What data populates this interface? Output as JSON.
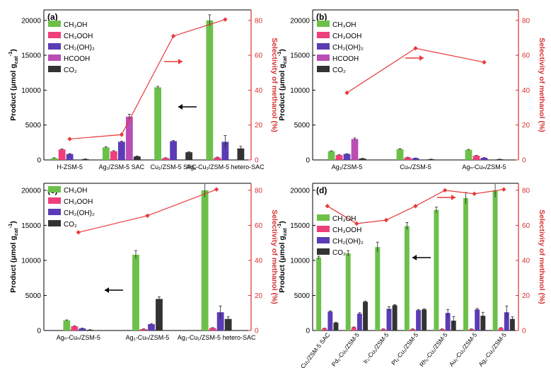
{
  "colors": {
    "CH3OH": "#6cc04a",
    "CH3OOH": "#ef3f7a",
    "CH2OH2": "#5b3cb5",
    "HCOOH": "#b94fb5",
    "CO2": "#333333",
    "selectivity": "#e83a3a",
    "axis": "#000000",
    "right_axis": "#d83030"
  },
  "chart_data": [
    {
      "panel": "(a)",
      "type": "bar",
      "ylabel": "Product (μmol g_cat^-1)",
      "y2label": "Selectivity of methanol (%)",
      "ylim": [
        0,
        21500
      ],
      "y2lim": [
        0,
        86
      ],
      "yticks": [
        0,
        5000,
        10000,
        15000,
        20000
      ],
      "y2ticks": [
        0,
        20,
        40,
        60,
        80
      ],
      "categories": [
        "H-ZSM-5",
        "Ag₁/ZSM-5 SAC",
        "Cu₁/ZSM-5 SAC",
        "Ag₁-Cu₁/ZSM-5 hetero-SAC"
      ],
      "series": [
        {
          "name": "CH3OH",
          "values": [
            250,
            1800,
            10400,
            20000
          ],
          "errors": [
            60,
            100,
            150,
            800
          ]
        },
        {
          "name": "CH3OOH",
          "values": [
            1500,
            1250,
            280,
            350
          ],
          "errors": [
            80,
            80,
            40,
            60
          ]
        },
        {
          "name": "CH2(OH)2",
          "values": [
            850,
            2600,
            2700,
            2600
          ],
          "errors": [
            60,
            100,
            100,
            900
          ]
        },
        {
          "name": "HCOOH",
          "values": [
            0,
            6200,
            0,
            0
          ],
          "errors": [
            0,
            350,
            0,
            0
          ]
        },
        {
          "name": "CO2",
          "values": [
            120,
            500,
            1100,
            1650
          ],
          "errors": [
            30,
            60,
            80,
            300
          ]
        }
      ],
      "selectivity": [
        12,
        14.5,
        71,
        80.5
      ],
      "legend": [
        "CH₃OH",
        "CH₃OOH",
        "CH₂(OH)₂",
        "HCOOH",
        "CO₂"
      ],
      "arrows": [
        "left",
        "right"
      ]
    },
    {
      "panel": "(b)",
      "type": "bar",
      "ylabel": "Product (μmol g_cat^-1)",
      "y2label": "Selectivity of methanol (%)",
      "ylim": [
        0,
        21500
      ],
      "y2lim": [
        0,
        86
      ],
      "yticks": [
        0,
        5000,
        10000,
        15000,
        20000
      ],
      "y2ticks": [
        0,
        20,
        40,
        60,
        80
      ],
      "categories": [
        "Ag₁/ZSM-5",
        "Cuₙ/ZSM-5",
        "Agₙ-Cuₙ/ZSM-5"
      ],
      "series": [
        {
          "name": "CH3OH",
          "values": [
            1250,
            1550,
            1450
          ],
          "errors": [
            60,
            70,
            60
          ]
        },
        {
          "name": "CH3OOH",
          "values": [
            700,
            350,
            600
          ],
          "errors": [
            50,
            40,
            50
          ]
        },
        {
          "name": "CH2(OH)2",
          "values": [
            850,
            250,
            300
          ],
          "errors": [
            50,
            30,
            40
          ]
        },
        {
          "name": "HCOOH",
          "values": [
            3000,
            0,
            0
          ],
          "errors": [
            150,
            0,
            0
          ]
        },
        {
          "name": "CO2",
          "values": [
            200,
            100,
            100
          ],
          "errors": [
            30,
            20,
            20
          ]
        }
      ],
      "selectivity": [
        38.5,
        64,
        56
      ],
      "legend": [
        "CH₃OH",
        "CH₃OOH",
        "CH₂(OH)₂",
        "HCOOH",
        "CO₂"
      ],
      "arrows": [
        "right"
      ]
    },
    {
      "panel": "(c)",
      "type": "bar",
      "ylabel": "Product (μmol g_cat^-1)",
      "y2label": "Selectivity of methanol (%)",
      "ylim": [
        0,
        21000
      ],
      "y2lim": [
        0,
        84
      ],
      "yticks": [
        0,
        5000,
        10000,
        15000,
        20000
      ],
      "y2ticks": [
        0,
        20,
        40,
        60,
        80
      ],
      "categories": [
        "Agₙ-Cuₙ/ZSM-5",
        "Ag₁-Cuₙ/ZSM-5",
        "Ag₁-Cu₁/ZSM-5 hetero-SAC"
      ],
      "series": [
        {
          "name": "CH3OH",
          "values": [
            1450,
            10800,
            20000
          ],
          "errors": [
            60,
            600,
            1000
          ]
        },
        {
          "name": "CH3OOH",
          "values": [
            600,
            200,
            350
          ],
          "errors": [
            50,
            30,
            60
          ]
        },
        {
          "name": "CH2(OH)2",
          "values": [
            300,
            900,
            2600
          ],
          "errors": [
            40,
            80,
            900
          ]
        },
        {
          "name": "CO2",
          "values": [
            100,
            4500,
            1650
          ],
          "errors": [
            20,
            300,
            300
          ]
        }
      ],
      "selectivity": [
        56,
        65.5,
        80.5
      ],
      "legend": [
        "CH₃OH",
        "CH₃OOH",
        "CH₂(OH)₂",
        "CO₂"
      ],
      "arrows": [
        "left"
      ]
    },
    {
      "panel": "(d)",
      "type": "bar",
      "ylabel": "Product (μmol g_cat^-1)",
      "y2label": "Selectivity of methanol (%)",
      "ylim": [
        0,
        21000
      ],
      "y2lim": [
        0,
        84
      ],
      "yticks": [
        0,
        5000,
        10000,
        15000,
        20000
      ],
      "y2ticks": [
        0,
        20,
        40,
        60,
        80
      ],
      "categories": [
        "Cu₁/ZSM-5 SAC",
        "Pd₁-Cu₁/ZSM-5",
        "Ir₁-Cu₁/ZSM-5",
        "Pt₁-Cu₁/ZSM-5",
        "Rh₁-Cu₁/ZSM-5",
        "Au₁-Cu₁/ZSM-5",
        "Ag₁-Cu₁/ZSM-5"
      ],
      "series": [
        {
          "name": "CH3OH",
          "values": [
            10400,
            11000,
            11900,
            14900,
            17200,
            18900,
            20000
          ],
          "errors": [
            200,
            400,
            700,
            500,
            400,
            800,
            1000
          ]
        },
        {
          "name": "CH3OOH",
          "values": [
            300,
            450,
            200,
            200,
            200,
            200,
            350
          ],
          "errors": [
            30,
            50,
            30,
            30,
            30,
            30,
            60
          ]
        },
        {
          "name": "CH2(OH)2",
          "values": [
            2700,
            2400,
            3100,
            2900,
            2500,
            3000,
            2600
          ],
          "errors": [
            100,
            150,
            300,
            100,
            500,
            150,
            900
          ]
        },
        {
          "name": "CO2",
          "values": [
            1100,
            4100,
            3600,
            3000,
            1400,
            2100,
            1650
          ],
          "errors": [
            80,
            100,
            100,
            100,
            600,
            500,
            300
          ]
        }
      ],
      "selectivity": [
        71,
        61,
        63,
        71,
        80,
        78,
        80.5
      ],
      "legend": [
        "CH₃OH",
        "CH₃OOH",
        "CH₂(OH)₂",
        "CO₂"
      ],
      "arrows": [
        "left",
        "right"
      ]
    }
  ]
}
